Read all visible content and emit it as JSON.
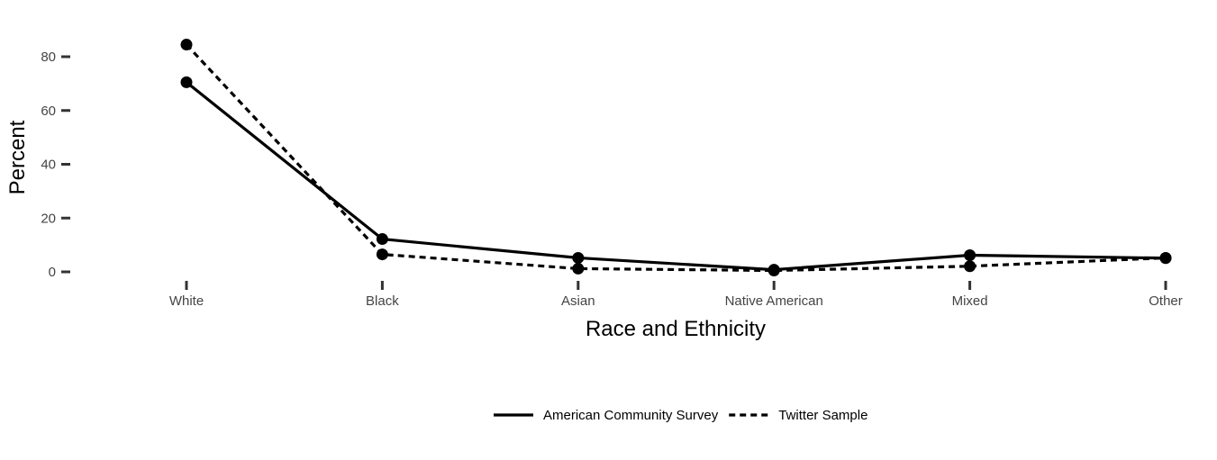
{
  "chart_data": {
    "type": "line",
    "title": "",
    "xlabel": "Race and Ethnicity",
    "ylabel": "Percent",
    "categories": [
      "White",
      "Black",
      "Asian",
      "Native American",
      "Mixed",
      "Other"
    ],
    "y_ticks": [
      0,
      20,
      40,
      60,
      80
    ],
    "ylim": [
      0,
      84.5
    ],
    "grid": false,
    "legend_position": "bottom",
    "series": [
      {
        "name": "American Community Survey",
        "line_style": "solid",
        "color": "#000000",
        "values": [
          70.5,
          12.2,
          5.2,
          0.8,
          6.2,
          5.1
        ]
      },
      {
        "name": "Twitter Sample",
        "line_style": "dashed",
        "color": "#000000",
        "values": [
          84.5,
          6.5,
          1.2,
          0.5,
          2.1,
          5.2
        ]
      }
    ]
  }
}
